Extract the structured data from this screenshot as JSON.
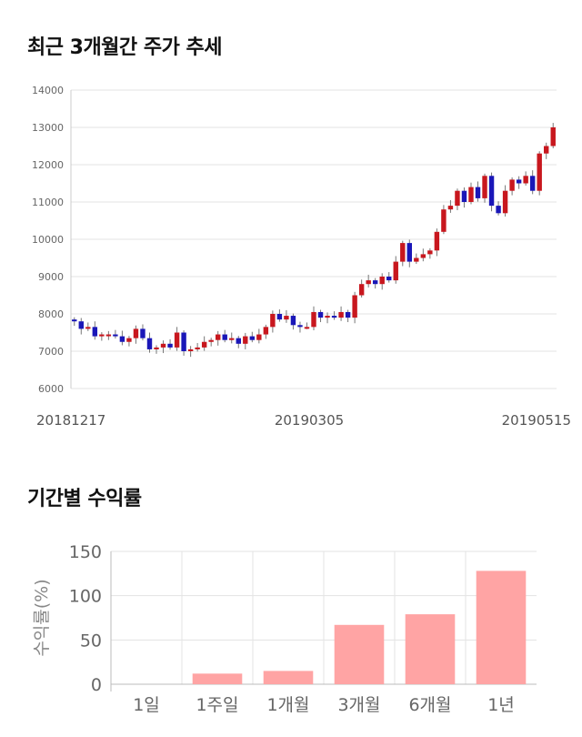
{
  "titles": {
    "price_trend": "최근 3개월간 주가 추세",
    "period_returns": "기간별 수익률"
  },
  "colors": {
    "up": "#c8171e",
    "down": "#1a17b8",
    "bar": "#ffa4a4",
    "grid": "#e3e3e3"
  },
  "chart_data": [
    {
      "type": "candlestick",
      "title": "최근 3개월간 주가 추세",
      "ylim": [
        6000,
        14000
      ],
      "yticks": [
        6000,
        7000,
        8000,
        9000,
        10000,
        11000,
        12000,
        13000,
        14000
      ],
      "date_labels": [
        "20181217",
        "20190305",
        "20190515"
      ],
      "grid": true,
      "closes": [
        7800,
        7600,
        7650,
        7400,
        7450,
        7450,
        7400,
        7250,
        7350,
        7600,
        7350,
        7050,
        7100,
        7200,
        7100,
        7500,
        7000,
        7050,
        7100,
        7250,
        7300,
        7450,
        7300,
        7350,
        7200,
        7400,
        7300,
        7450,
        7650,
        8000,
        7850,
        7950,
        7700,
        7650,
        7650,
        8050,
        7900,
        7950,
        7900,
        8050,
        7900,
        8500,
        8800,
        8900,
        8800,
        9000,
        8900,
        9400,
        9900,
        9400,
        9500,
        9600,
        9700,
        10200,
        10800,
        10900,
        11300,
        11000,
        11400,
        11100,
        11700,
        10900,
        10700,
        11300,
        11600,
        11500,
        11700,
        11300,
        12300,
        12500,
        13000
      ]
    },
    {
      "type": "bar",
      "title": "기간별 수익률",
      "categories": [
        "1일",
        "1주일",
        "1개월",
        "3개월",
        "6개월",
        "1년"
      ],
      "values": [
        0,
        12,
        15,
        67,
        79,
        128
      ],
      "ylabel": "수익률(%)",
      "ylim": [
        0,
        150
      ],
      "yticks": [
        0,
        50,
        100,
        150
      ],
      "grid": true
    }
  ]
}
